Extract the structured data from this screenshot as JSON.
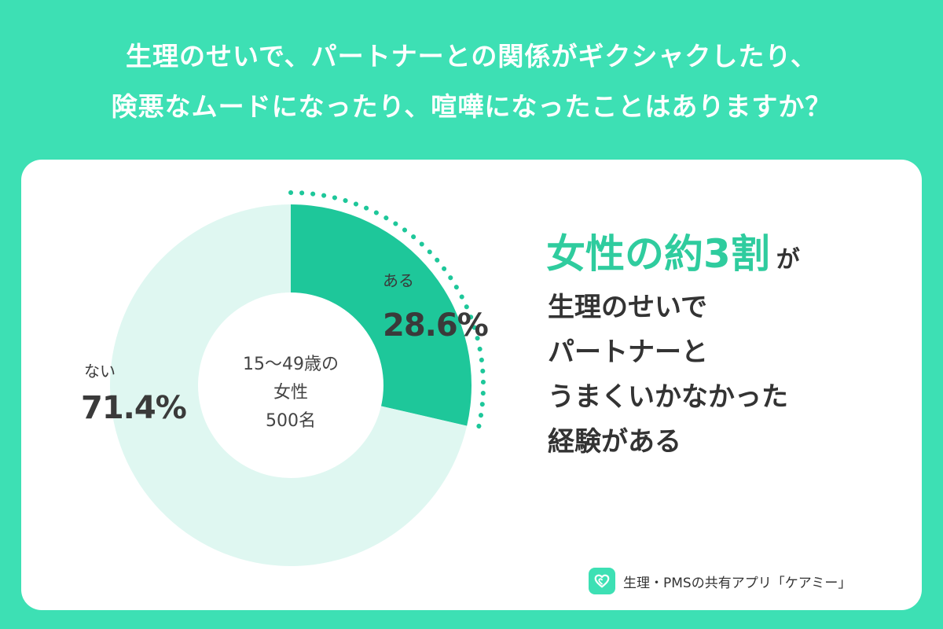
{
  "title": {
    "line1": "生理のせいで、パートナーとの関係がギクシャクしたり、",
    "line2": "険悪なムードになったり、喧嘩になったことはありますか？"
  },
  "chart_data": {
    "type": "pie",
    "categories": [
      "ある",
      "ない"
    ],
    "values": [
      28.6,
      71.4
    ],
    "value_labels": [
      "28.6%",
      "71.4%"
    ],
    "colors": [
      "#1ec79a",
      "#dff7f1"
    ],
    "center_text": [
      "15〜49歳の",
      "女性",
      "500名"
    ],
    "dotted_accent_color": "#1ec79a"
  },
  "headline": {
    "highlight": "女性の約3割",
    "suffix": "が",
    "highlight_color": "#2fcc9e"
  },
  "message": [
    "生理のせいで",
    "パートナーと",
    "うまくいかなかった",
    "経験がある"
  ],
  "footer": {
    "text": "生理・PMSの共有アプリ「ケアミー」",
    "icon": "heart-app-icon"
  },
  "colors": {
    "background": "#3de0b4",
    "card": "#ffffff"
  }
}
